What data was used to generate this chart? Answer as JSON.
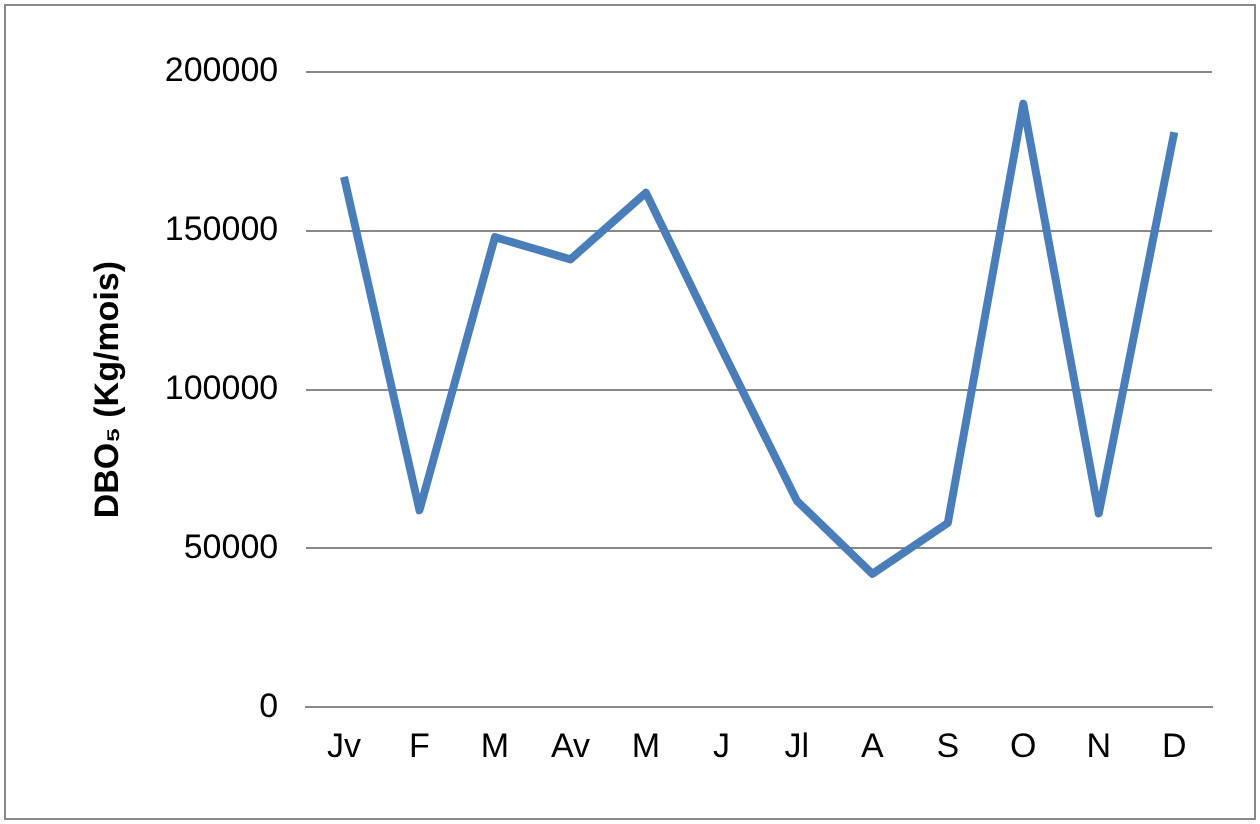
{
  "chart_data": {
    "type": "line",
    "ylabel": "DBO₅ (Kg/mois)",
    "categories": [
      "Jv",
      "F",
      "M",
      "Av",
      "M",
      "J",
      "Jl",
      "A",
      "S",
      "O",
      "N",
      "D"
    ],
    "series": [
      {
        "color": "#4a7ebb",
        "values": [
          167000,
          62000,
          148000,
          141000,
          162000,
          113000,
          65000,
          42000,
          58000,
          190000,
          61000,
          181000
        ]
      }
    ],
    "ylim": [
      0,
      200000
    ],
    "yticks": [
      0,
      50000,
      100000,
      150000,
      200000
    ],
    "grid": "y",
    "legend": false,
    "marker": "none",
    "line_style": "solid"
  }
}
